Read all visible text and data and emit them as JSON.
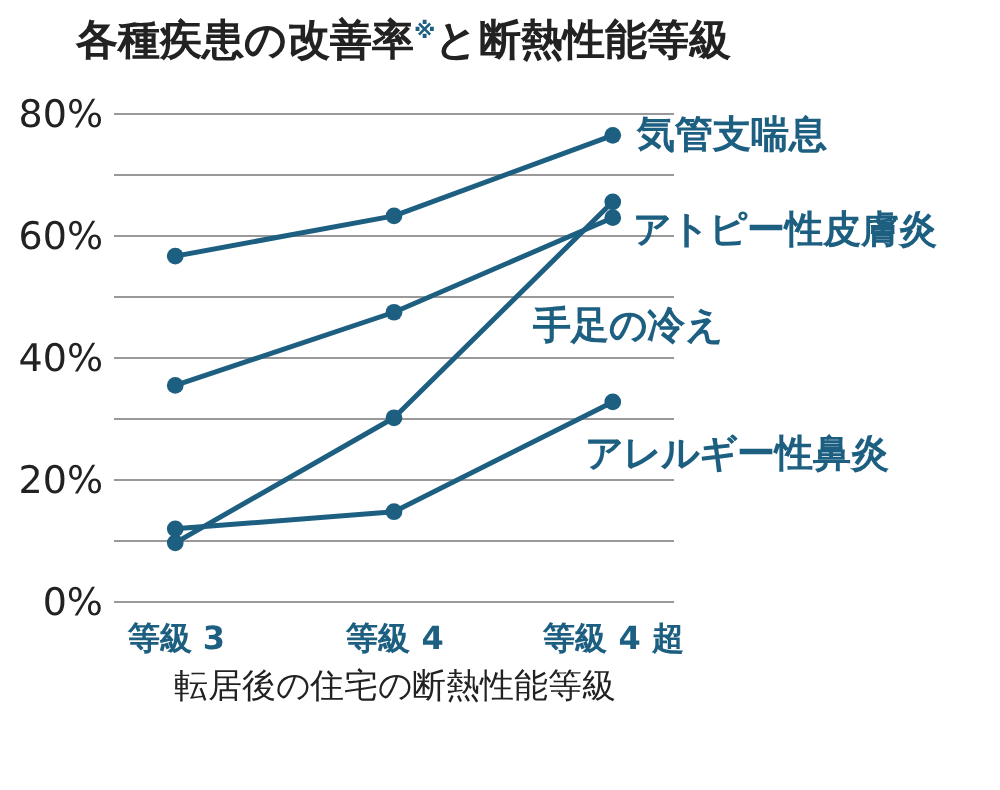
{
  "chart_data": {
    "type": "line",
    "title": "各種疾患の改善率$^{※}$と断熱性能等級",
    "xlabel": "転居後の住宅の断熱性能等級",
    "categories": [
      "等級 3",
      "等級 4",
      "等級 4 超"
    ],
    "series": [
      {
        "name": "気管支喘息",
        "color": "#1d5f80",
        "values": [
          56.7,
          63.3,
          76.5
        ]
      },
      {
        "name": "アトピー性皮膚炎",
        "color": "#1d5f80",
        "values": [
          35.5,
          47.5,
          63
        ]
      },
      {
        "name": "手足の冷え",
        "color": "#1d5f80",
        "values": [
          9.7,
          30.2,
          65.6
        ]
      },
      {
        "name": "アレルギー性鼻炎",
        "color": "#1d5f80",
        "values": [
          12,
          14.8,
          32.8
        ]
      }
    ],
    "ylim": [
      0,
      80
    ],
    "yticks": [
      {
        "value": 0,
        "label": "0%"
      },
      {
        "value": 10,
        "label": null
      },
      {
        "value": 20,
        "label": "20%"
      },
      {
        "value": 30,
        "label": null
      },
      {
        "value": 40,
        "label": "40%"
      },
      {
        "value": 50,
        "label": null
      },
      {
        "value": 60,
        "label": "60%"
      },
      {
        "value": 70,
        "label": null
      },
      {
        "value": 80,
        "label": "80%"
      }
    ],
    "grid": "y",
    "marker": "circle",
    "line_style": "solid"
  }
}
